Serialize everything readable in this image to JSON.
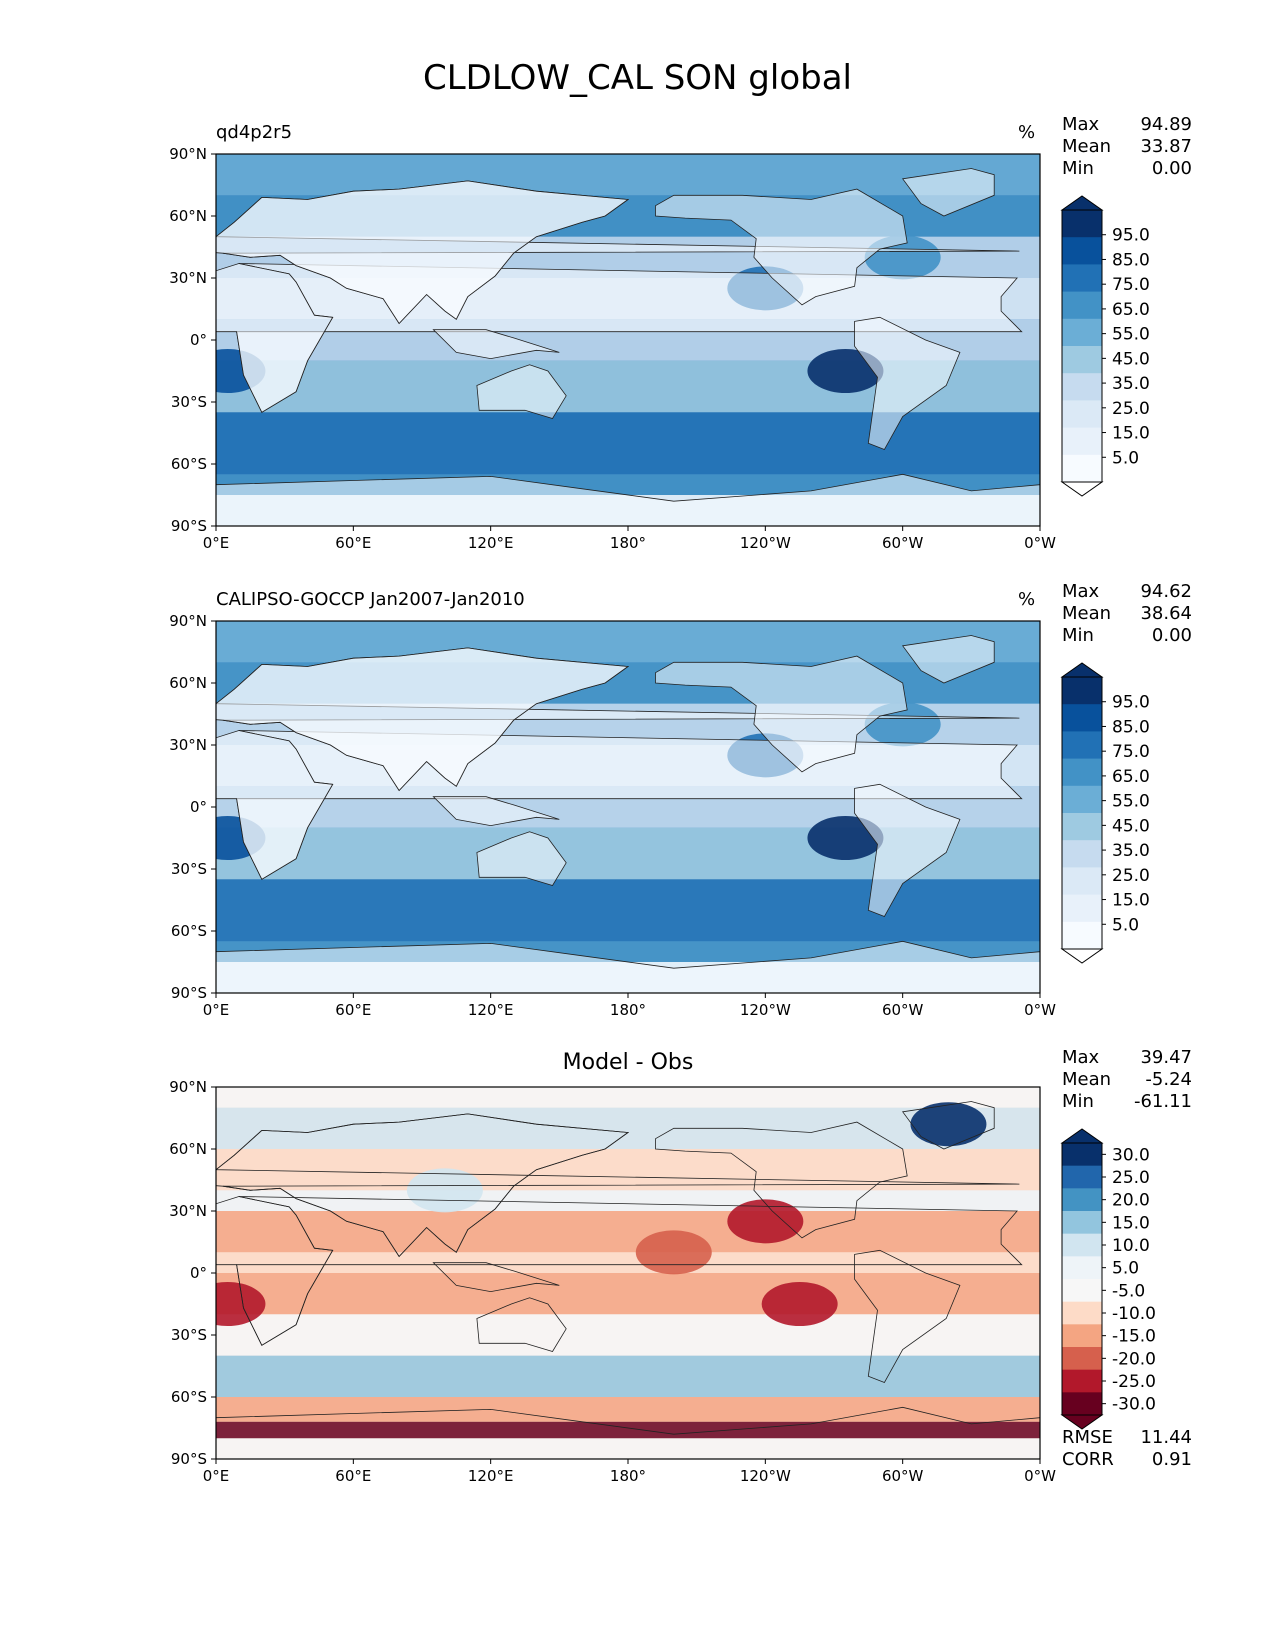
{
  "title": "CLDLOW_CAL SON global",
  "axes": {
    "lat_ticks": [
      "90°N",
      "60°N",
      "30°N",
      "0°",
      "30°S",
      "60°S",
      "90°S"
    ],
    "lon_ticks": [
      "0°E",
      "60°E",
      "120°E",
      "180°",
      "120°W",
      "60°W",
      "0°W"
    ]
  },
  "chart_data": [
    {
      "type": "heatmap",
      "panel_title": "qd4p2r5",
      "units": "%",
      "stats": {
        "max_label": "Max",
        "max": "94.89",
        "mean_label": "Mean",
        "mean": "33.87",
        "min_label": "Min",
        "min": "0.00"
      },
      "colorbar": {
        "labels": [
          "95.0",
          "85.0",
          "75.0",
          "65.0",
          "55.0",
          "45.0",
          "35.0",
          "25.0",
          "15.0",
          "5.0"
        ],
        "colors": [
          "#08306b",
          "#08519c",
          "#2171b5",
          "#4292c6",
          "#6baed6",
          "#9ecae1",
          "#c6dbef",
          "#dbe9f6",
          "#e8f1fa",
          "#f7fbff"
        ],
        "top_color": "#08306b",
        "bottom_color": "#ffffff"
      },
      "background": "#3f84c4",
      "xlim": [
        0,
        360
      ],
      "ylim": [
        -90,
        90
      ]
    },
    {
      "type": "heatmap",
      "panel_title": "CALIPSO-GOCCP Jan2007-Jan2010",
      "units": "%",
      "stats": {
        "max_label": "Max",
        "max": "94.62",
        "mean_label": "Mean",
        "mean": "38.64",
        "min_label": "Min",
        "min": "0.00"
      },
      "colorbar": {
        "labels": [
          "95.0",
          "85.0",
          "75.0",
          "65.0",
          "55.0",
          "45.0",
          "35.0",
          "25.0",
          "15.0",
          "5.0"
        ],
        "colors": [
          "#08306b",
          "#08519c",
          "#2171b5",
          "#4292c6",
          "#6baed6",
          "#9ecae1",
          "#c6dbef",
          "#dbe9f6",
          "#e8f1fa",
          "#f7fbff"
        ],
        "top_color": "#08306b",
        "bottom_color": "#ffffff"
      },
      "background": "#5d9fd2",
      "xlim": [
        0,
        360
      ],
      "ylim": [
        -90,
        90
      ]
    },
    {
      "type": "heatmap",
      "panel_title": "Model - Obs",
      "units": "",
      "stats": {
        "max_label": "Max",
        "max": "39.47",
        "mean_label": "Mean",
        "mean": "-5.24",
        "min_label": "Min",
        "min": "-61.11"
      },
      "colorbar": {
        "labels": [
          "30.0",
          "25.0",
          "20.0",
          "15.0",
          "10.0",
          "5.0",
          "-5.0",
          "-10.0",
          "-15.0",
          "-20.0",
          "-25.0",
          "-30.0"
        ],
        "colors": [
          "#08306b",
          "#2166ac",
          "#4393c3",
          "#92c5de",
          "#d1e5f0",
          "#eef4f8",
          "#f7f7f7",
          "#fddbc7",
          "#f4a582",
          "#d6604d",
          "#b2182b",
          "#67001f"
        ],
        "top_color": "#08306b",
        "bottom_color": "#67001f"
      },
      "metrics": {
        "rmse_label": "RMSE",
        "rmse": "11.44",
        "corr_label": "CORR",
        "corr": "0.91"
      },
      "background": "#f3e4dc",
      "xlim": [
        0,
        360
      ],
      "ylim": [
        -90,
        90
      ]
    }
  ]
}
